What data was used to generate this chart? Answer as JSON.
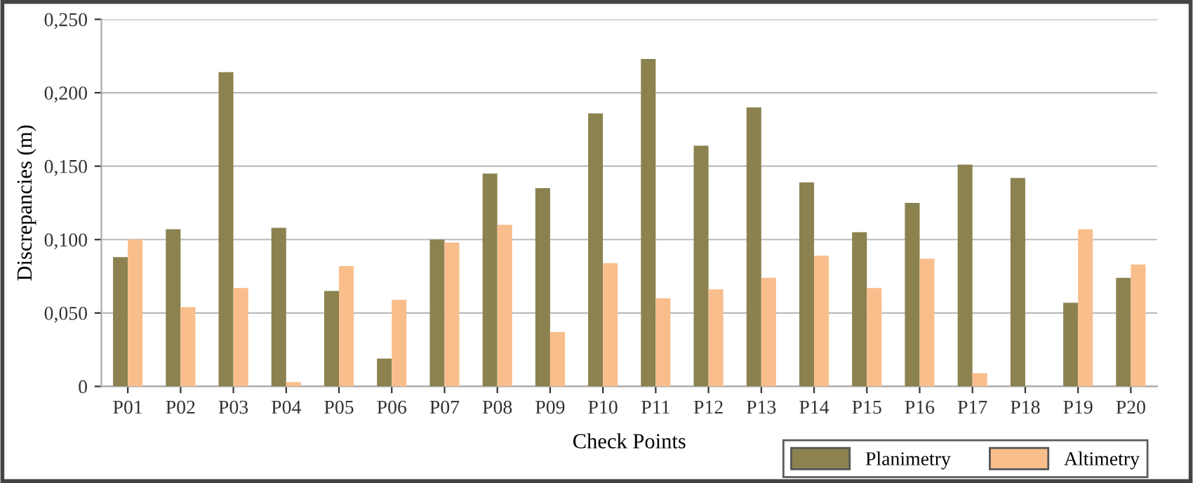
{
  "chart_data": {
    "type": "bar",
    "xlabel": "Check Points",
    "ylabel": "Discrepancies (m)",
    "categories": [
      "P01",
      "P02",
      "P03",
      "P04",
      "P05",
      "P06",
      "P07",
      "P08",
      "P09",
      "P10",
      "P11",
      "P12",
      "P13",
      "P14",
      "P15",
      "P16",
      "P17",
      "P18",
      "P19",
      "P20"
    ],
    "series": [
      {
        "name": "Planimetry",
        "color": "#8b8250",
        "values": [
          0.088,
          0.107,
          0.214,
          0.108,
          0.065,
          0.019,
          0.1,
          0.145,
          0.135,
          0.186,
          0.223,
          0.164,
          0.19,
          0.139,
          0.105,
          0.125,
          0.151,
          0.142,
          0.057,
          0.074
        ]
      },
      {
        "name": "Altimetry",
        "color": "#f9be8c",
        "values": [
          0.1,
          0.054,
          0.067,
          0.003,
          0.082,
          0.059,
          0.098,
          0.11,
          0.037,
          0.084,
          0.06,
          0.066,
          0.074,
          0.089,
          0.067,
          0.087,
          0.009,
          0,
          0.107,
          0.083
        ]
      }
    ],
    "ylim": [
      0,
      0.25
    ],
    "yticks": [
      {
        "value": 0,
        "label": "0"
      },
      {
        "value": 0.05,
        "label": "0,050"
      },
      {
        "value": 0.1,
        "label": "0,100"
      },
      {
        "value": 0.15,
        "label": "0,150"
      },
      {
        "value": 0.2,
        "label": "0,200"
      },
      {
        "value": 0.25,
        "label": "0,250"
      }
    ],
    "grid": "y",
    "legend": "bottom right"
  }
}
